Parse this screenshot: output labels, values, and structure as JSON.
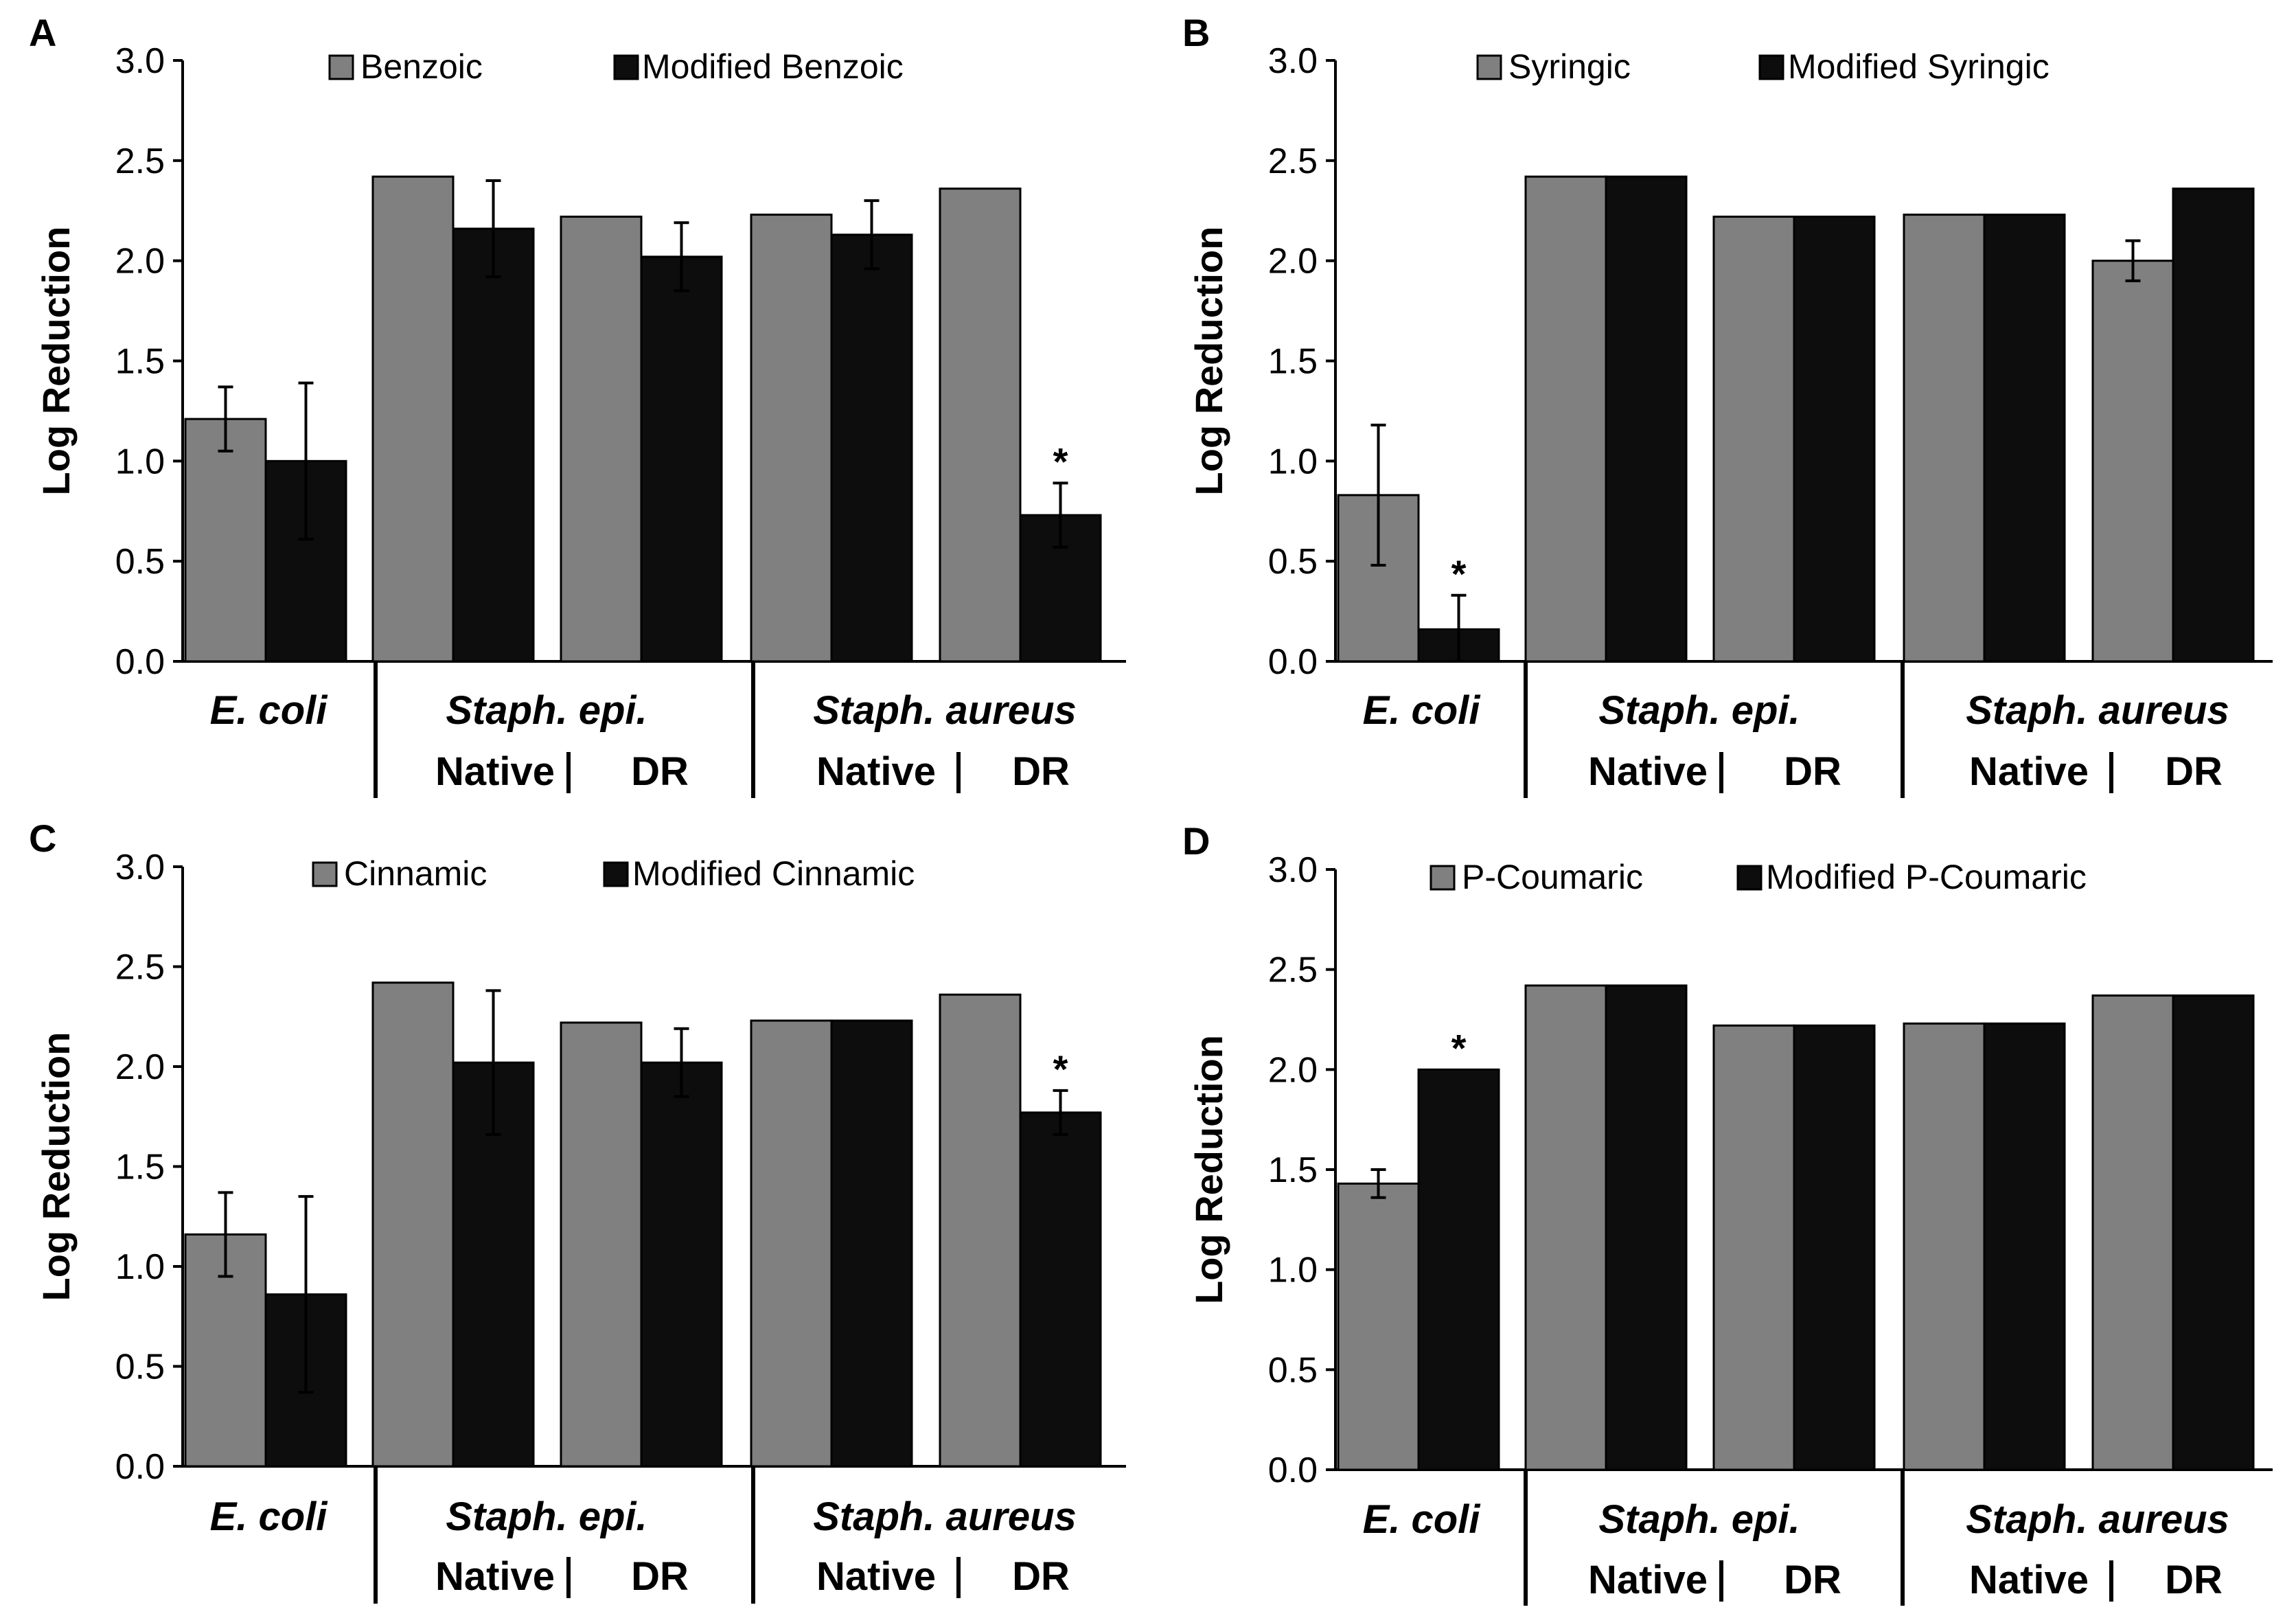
{
  "figure": {
    "ylabel": "Log Reduction",
    "organisms": [
      "E. coli",
      "Staph. epi.",
      "Staph. aureus"
    ],
    "strain_labels": [
      "Native",
      "DR"
    ],
    "significance_marker": "*"
  },
  "chart_data": [
    {
      "panel": "A",
      "type": "bar",
      "ylabel": "Log Reduction",
      "ylim": [
        0,
        3.0
      ],
      "yticks": [
        "0.0",
        "0.5",
        "1.0",
        "1.5",
        "2.0",
        "2.5",
        "3.0"
      ],
      "legend_position": "top-center",
      "categories": [
        "E. coli",
        "Staph. epi. Native",
        "Staph. epi. DR",
        "Staph. aureus Native",
        "Staph. aureus DR"
      ],
      "series": [
        {
          "name": "Benzoic",
          "color": "#808080",
          "values": [
            1.21,
            2.42,
            2.22,
            2.23,
            2.36
          ],
          "errors": [
            0.16,
            null,
            null,
            null,
            null
          ]
        },
        {
          "name": "Modified Benzoic",
          "color": "#0d0d0d",
          "values": [
            1.0,
            2.16,
            2.02,
            2.13,
            0.73
          ],
          "errors": [
            0.39,
            0.24,
            0.17,
            0.17,
            0.16
          ]
        }
      ],
      "significance": [
        {
          "series": 1,
          "category": 4
        }
      ]
    },
    {
      "panel": "B",
      "type": "bar",
      "ylabel": "Log Reduction",
      "ylim": [
        0,
        3.0
      ],
      "yticks": [
        "0.0",
        "0.5",
        "1.0",
        "1.5",
        "2.0",
        "2.5",
        "3.0"
      ],
      "legend_position": "top-center",
      "categories": [
        "E. coli",
        "Staph. epi. Native",
        "Staph. epi. DR",
        "Staph. aureus Native",
        "Staph. aureus DR"
      ],
      "series": [
        {
          "name": "Syringic",
          "color": "#808080",
          "values": [
            0.83,
            2.42,
            2.22,
            2.23,
            2.0
          ],
          "errors": [
            0.35,
            null,
            null,
            null,
            0.1
          ]
        },
        {
          "name": "Modified Syringic",
          "color": "#0d0d0d",
          "values": [
            0.16,
            2.42,
            2.22,
            2.23,
            2.36
          ],
          "errors": [
            0.17,
            null,
            null,
            null,
            null
          ]
        }
      ],
      "significance": [
        {
          "series": 1,
          "category": 0
        }
      ]
    },
    {
      "panel": "C",
      "type": "bar",
      "ylabel": "Log Reduction",
      "ylim": [
        0,
        3.0
      ],
      "yticks": [
        "0.0",
        "0.5",
        "1.0",
        "1.5",
        "2.0",
        "2.5",
        "3.0"
      ],
      "legend_position": "top-center",
      "categories": [
        "E. coli",
        "Staph. epi. Native",
        "Staph. epi. DR",
        "Staph. aureus Native",
        "Staph. aureus DR"
      ],
      "series": [
        {
          "name": "Cinnamic",
          "color": "#808080",
          "values": [
            1.16,
            2.42,
            2.22,
            2.23,
            2.36
          ],
          "errors": [
            0.21,
            null,
            null,
            null,
            null
          ]
        },
        {
          "name": "Modified Cinnamic",
          "color": "#0d0d0d",
          "values": [
            0.86,
            2.02,
            2.02,
            2.23,
            1.77
          ],
          "errors": [
            0.49,
            0.36,
            0.17,
            null,
            0.11
          ]
        }
      ],
      "significance": [
        {
          "series": 1,
          "category": 4
        }
      ]
    },
    {
      "panel": "D",
      "type": "bar",
      "ylabel": "Log Reduction",
      "ylim": [
        0,
        3.0
      ],
      "yticks": [
        "0.0",
        "0.5",
        "1.0",
        "1.5",
        "2.0",
        "2.5",
        "3.0"
      ],
      "legend_position": "top-center",
      "categories": [
        "E. coli",
        "Staph. epi. Native",
        "Staph. epi. DR",
        "Staph. aureus Native",
        "Staph. aureus DR"
      ],
      "series": [
        {
          "name": "P-Coumaric",
          "color": "#808080",
          "values": [
            1.43,
            2.42,
            2.22,
            2.23,
            2.37
          ],
          "errors": [
            0.07,
            null,
            null,
            null,
            null
          ]
        },
        {
          "name": "Modified P-Coumaric",
          "color": "#0d0d0d",
          "values": [
            2.0,
            2.42,
            2.22,
            2.23,
            2.37
          ],
          "errors": [
            null,
            null,
            null,
            null,
            null
          ]
        }
      ],
      "significance": [
        {
          "series": 1,
          "category": 0
        }
      ]
    }
  ]
}
